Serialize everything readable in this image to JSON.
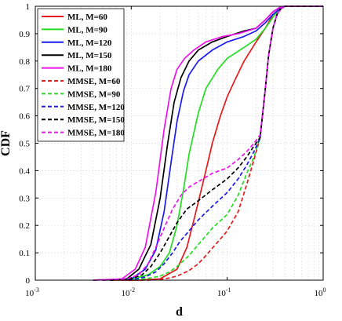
{
  "chart_data": {
    "type": "line",
    "xlabel": "d",
    "ylabel": "CDF",
    "xscale": "log",
    "xlim": [
      0.001,
      1
    ],
    "ylim": [
      0,
      1
    ],
    "xticks": [
      {
        "value": 0.001,
        "base": "10",
        "exp": "-3"
      },
      {
        "value": 0.01,
        "base": "10",
        "exp": "-2"
      },
      {
        "value": 0.1,
        "base": "10",
        "exp": "-1"
      },
      {
        "value": 1,
        "base": "10",
        "exp": "0"
      }
    ],
    "yticks": [
      "0",
      "0.1",
      "0.2",
      "0.3",
      "0.4",
      "0.5",
      "0.6",
      "0.7",
      "0.8",
      "0.9",
      "1"
    ],
    "grid": true,
    "legend_position": "top-left",
    "series": [
      {
        "name": "ML, M=60",
        "color": "#e41a1c",
        "dash": "solid",
        "x": [
          0.006,
          0.012,
          0.02,
          0.03,
          0.038,
          0.045,
          0.052,
          0.06,
          0.07,
          0.085,
          0.1,
          0.12,
          0.15,
          0.2,
          0.25,
          0.3,
          0.35,
          0.4,
          0.5,
          1
        ],
        "y": [
          0,
          0,
          0.005,
          0.04,
          0.12,
          0.22,
          0.31,
          0.4,
          0.5,
          0.6,
          0.67,
          0.73,
          0.8,
          0.87,
          0.92,
          0.97,
          0.99,
          1,
          1,
          1
        ]
      },
      {
        "name": "ML, M=90",
        "color": "#22dd22",
        "dash": "solid",
        "x": [
          0.005,
          0.01,
          0.015,
          0.02,
          0.025,
          0.03,
          0.035,
          0.04,
          0.05,
          0.06,
          0.08,
          0.1,
          0.15,
          0.2,
          0.25,
          0.3,
          0.35,
          0.4,
          1
        ],
        "y": [
          0,
          0.003,
          0.02,
          0.05,
          0.1,
          0.2,
          0.33,
          0.46,
          0.61,
          0.7,
          0.77,
          0.81,
          0.85,
          0.88,
          0.92,
          0.96,
          0.99,
          1,
          1
        ]
      },
      {
        "name": "ML, M=120",
        "color": "#1a1aee",
        "dash": "solid",
        "x": [
          0.005,
          0.01,
          0.014,
          0.018,
          0.022,
          0.026,
          0.03,
          0.035,
          0.04,
          0.05,
          0.07,
          0.1,
          0.15,
          0.2,
          0.25,
          0.3,
          0.35,
          0.4,
          1
        ],
        "y": [
          0,
          0.005,
          0.04,
          0.11,
          0.25,
          0.43,
          0.58,
          0.69,
          0.75,
          0.8,
          0.84,
          0.87,
          0.89,
          0.91,
          0.94,
          0.97,
          0.99,
          1,
          1
        ]
      },
      {
        "name": "ML, M=150",
        "color": "#000000",
        "dash": "solid",
        "x": [
          0.004,
          0.009,
          0.012,
          0.016,
          0.02,
          0.024,
          0.028,
          0.033,
          0.04,
          0.05,
          0.07,
          0.1,
          0.15,
          0.2,
          0.25,
          0.3,
          0.35,
          0.4,
          1
        ],
        "y": [
          0,
          0.005,
          0.04,
          0.13,
          0.3,
          0.5,
          0.65,
          0.74,
          0.8,
          0.84,
          0.87,
          0.89,
          0.91,
          0.92,
          0.95,
          0.98,
          0.995,
          1,
          1
        ]
      },
      {
        "name": "ML, M=180",
        "color": "#ee11ee",
        "dash": "solid",
        "x": [
          0.004,
          0.008,
          0.011,
          0.014,
          0.018,
          0.022,
          0.026,
          0.03,
          0.036,
          0.045,
          0.06,
          0.09,
          0.13,
          0.2,
          0.25,
          0.3,
          0.35,
          0.4,
          1
        ],
        "y": [
          0,
          0.005,
          0.04,
          0.12,
          0.32,
          0.55,
          0.7,
          0.77,
          0.81,
          0.84,
          0.87,
          0.89,
          0.9,
          0.92,
          0.95,
          0.98,
          0.995,
          1,
          1
        ]
      },
      {
        "name": "MMSE, M=60",
        "color": "#e41a1c",
        "dash": "dashed",
        "x": [
          0.008,
          0.015,
          0.02,
          0.025,
          0.03,
          0.04,
          0.05,
          0.06,
          0.08,
          0.1,
          0.13,
          0.16,
          0.19,
          0.22,
          0.25,
          0.27,
          0.3,
          0.33,
          0.36,
          0.4,
          1
        ],
        "y": [
          0,
          0,
          0.003,
          0.008,
          0.015,
          0.035,
          0.06,
          0.09,
          0.14,
          0.18,
          0.25,
          0.35,
          0.44,
          0.52,
          0.7,
          0.82,
          0.92,
          0.97,
          0.99,
          1,
          1
        ]
      },
      {
        "name": "MMSE, M=90",
        "color": "#22dd22",
        "dash": "dashed",
        "x": [
          0.007,
          0.012,
          0.016,
          0.02,
          0.025,
          0.03,
          0.04,
          0.05,
          0.07,
          0.1,
          0.13,
          0.16,
          0.19,
          0.22,
          0.25,
          0.27,
          0.3,
          0.33,
          0.36,
          0.4,
          1
        ],
        "y": [
          0,
          0.003,
          0.008,
          0.015,
          0.03,
          0.05,
          0.09,
          0.13,
          0.19,
          0.24,
          0.31,
          0.39,
          0.45,
          0.52,
          0.7,
          0.82,
          0.92,
          0.97,
          0.99,
          1,
          1
        ]
      },
      {
        "name": "MMSE, M=120",
        "color": "#1a1aee",
        "dash": "dashed",
        "x": [
          0.006,
          0.011,
          0.014,
          0.018,
          0.022,
          0.027,
          0.032,
          0.04,
          0.05,
          0.07,
          0.1,
          0.13,
          0.16,
          0.19,
          0.22,
          0.25,
          0.27,
          0.3,
          0.33,
          0.36,
          0.4,
          1
        ],
        "y": [
          0,
          0.004,
          0.012,
          0.03,
          0.06,
          0.1,
          0.14,
          0.18,
          0.22,
          0.27,
          0.32,
          0.37,
          0.42,
          0.47,
          0.52,
          0.7,
          0.82,
          0.92,
          0.97,
          0.99,
          1,
          1
        ]
      },
      {
        "name": "MMSE, M=150",
        "color": "#000000",
        "dash": "dashed",
        "x": [
          0.006,
          0.01,
          0.013,
          0.016,
          0.02,
          0.025,
          0.03,
          0.038,
          0.05,
          0.07,
          0.1,
          0.13,
          0.16,
          0.19,
          0.22,
          0.25,
          0.27,
          0.3,
          0.33,
          0.36,
          0.4,
          1
        ],
        "y": [
          0,
          0.005,
          0.02,
          0.05,
          0.1,
          0.16,
          0.21,
          0.26,
          0.29,
          0.33,
          0.37,
          0.41,
          0.45,
          0.49,
          0.52,
          0.7,
          0.82,
          0.92,
          0.97,
          0.99,
          1,
          1
        ]
      },
      {
        "name": "MMSE, M=180",
        "color": "#ee11ee",
        "dash": "dashed",
        "x": [
          0.005,
          0.009,
          0.012,
          0.015,
          0.018,
          0.022,
          0.027,
          0.033,
          0.04,
          0.05,
          0.07,
          0.1,
          0.13,
          0.16,
          0.19,
          0.22,
          0.25,
          0.27,
          0.3,
          0.33,
          0.36,
          0.4,
          1
        ],
        "y": [
          0,
          0.005,
          0.02,
          0.06,
          0.12,
          0.19,
          0.26,
          0.31,
          0.34,
          0.36,
          0.39,
          0.41,
          0.44,
          0.47,
          0.5,
          0.53,
          0.7,
          0.82,
          0.92,
          0.97,
          0.99,
          1,
          1
        ]
      }
    ]
  }
}
